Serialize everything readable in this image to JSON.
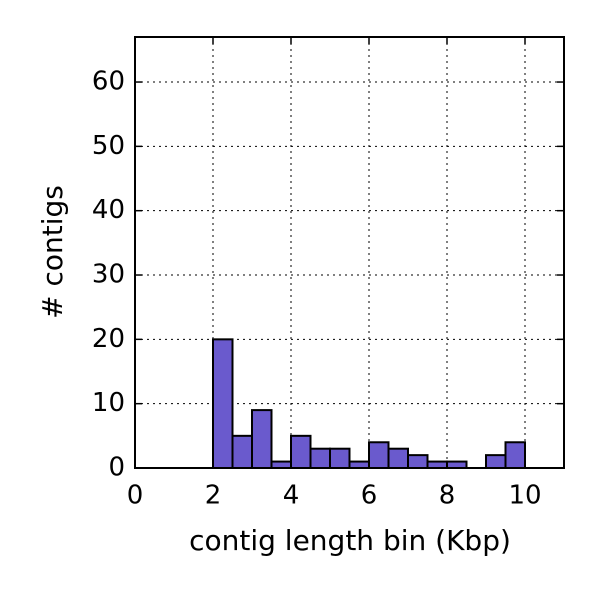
{
  "chart_data": {
    "type": "histogram",
    "x_label": "contig length bin (Kbp)",
    "y_label": "# contigs",
    "bins": [
      0,
      0.5,
      1,
      1.5,
      2,
      2.5,
      3,
      3.5,
      4,
      4.5,
      5,
      5.5,
      6,
      6.5,
      7,
      7.5,
      8,
      8.5,
      9,
      9.5,
      10,
      10.5,
      11
    ],
    "values": [
      0,
      0,
      0,
      0,
      20,
      5,
      9,
      1,
      5,
      3,
      3,
      1,
      4,
      3,
      2,
      1,
      1,
      0,
      2,
      4,
      0,
      0
    ],
    "color": "#6a5acd",
    "xlim": [
      0,
      11
    ],
    "xticks": [
      0,
      2,
      4,
      6,
      8,
      10
    ],
    "ylim": [
      0,
      67
    ],
    "yticks": [
      0,
      10,
      20,
      30,
      40,
      50,
      60
    ],
    "grid": true
  }
}
